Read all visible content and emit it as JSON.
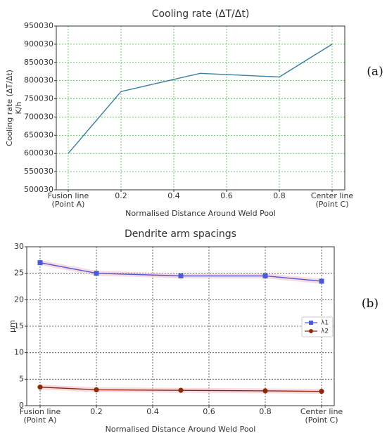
{
  "panel_labels": [
    "(a)",
    "(b)"
  ],
  "chart_data": [
    {
      "type": "line",
      "title": "Cooling rate (ΔT/Δt)",
      "xlabel": "Normalised Distance Around Weld Pool",
      "ylabel_lines": [
        "Cooling rate (ΔT/Δt)",
        "K/h"
      ],
      "xlim": [
        0,
        1
      ],
      "ylim": [
        500030,
        950030
      ],
      "xticks": [
        {
          "value": 0,
          "lines": [
            "Fusion line",
            "(Point A)"
          ]
        },
        {
          "value": 0.2,
          "lines": [
            "0.2"
          ]
        },
        {
          "value": 0.4,
          "lines": [
            "0.4"
          ]
        },
        {
          "value": 0.6,
          "lines": [
            "0.6"
          ]
        },
        {
          "value": 0.8,
          "lines": [
            "0.8"
          ]
        },
        {
          "value": 1,
          "lines": [
            "Center line",
            "(Point C)"
          ]
        }
      ],
      "yticks": [
        500030,
        550030,
        600030,
        650030,
        700030,
        750030,
        800030,
        850030,
        900030,
        950030
      ],
      "grid": true,
      "series": [
        {
          "x": [
            0,
            0.2,
            0.5,
            0.8,
            1
          ],
          "y": [
            600030,
            770030,
            820030,
            810030,
            900030
          ],
          "color": "#3a7fa0"
        }
      ]
    },
    {
      "type": "line",
      "title": "Dendrite arm spacings",
      "xlabel": "Normalised Distance Around Weld Pool",
      "ylabel_lines": [
        "μm"
      ],
      "xlim": [
        0,
        1
      ],
      "ylim": [
        0,
        30
      ],
      "xticks": [
        {
          "value": 0,
          "lines": [
            "Fusion line",
            "(Point A)"
          ]
        },
        {
          "value": 0.2,
          "lines": [
            "0.2"
          ]
        },
        {
          "value": 0.4,
          "lines": [
            "0.4"
          ]
        },
        {
          "value": 0.6,
          "lines": [
            "0.6"
          ]
        },
        {
          "value": 0.8,
          "lines": [
            "0.8"
          ]
        },
        {
          "value": 1,
          "lines": [
            "Center line",
            "(Point C)"
          ]
        }
      ],
      "yticks": [
        0,
        5,
        10,
        15,
        20,
        25,
        30
      ],
      "grid": true,
      "legend": "right",
      "series": [
        {
          "name": "λ1",
          "x": [
            0,
            0.2,
            0.5,
            0.8,
            1
          ],
          "y": [
            27,
            25,
            24.5,
            24.5,
            23.5
          ],
          "color": "#4a5bd6",
          "marker": "square"
        },
        {
          "name": "λ2",
          "x": [
            0,
            0.2,
            0.5,
            0.8,
            1
          ],
          "y": [
            3.5,
            3.0,
            2.9,
            2.8,
            2.7
          ],
          "color": "#8b2a0a",
          "marker": "circle"
        }
      ]
    }
  ]
}
